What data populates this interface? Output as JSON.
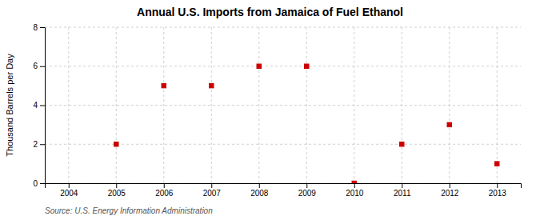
{
  "chart_data": {
    "type": "scatter",
    "title": "Annual U.S. Imports from Jamaica of Fuel Ethanol",
    "ylabel": "Thousand Barrels per Day",
    "source": "Source: U.S. Energy Information Administration",
    "x": [
      2004,
      2005,
      2006,
      2007,
      2008,
      2009,
      2010,
      2011,
      2012,
      2013
    ],
    "values": [
      null,
      2,
      5,
      5,
      6,
      6,
      0,
      2,
      3,
      1
    ],
    "color": "#cc0000",
    "marker": "square",
    "xlim": [
      2003.5,
      2013.5
    ],
    "xticks": [
      2004,
      2005,
      2006,
      2007,
      2008,
      2009,
      2010,
      2011,
      2012,
      2013
    ],
    "ylim": [
      0,
      8
    ],
    "yticks": [
      0,
      2,
      4,
      6,
      8
    ],
    "grid": true
  }
}
